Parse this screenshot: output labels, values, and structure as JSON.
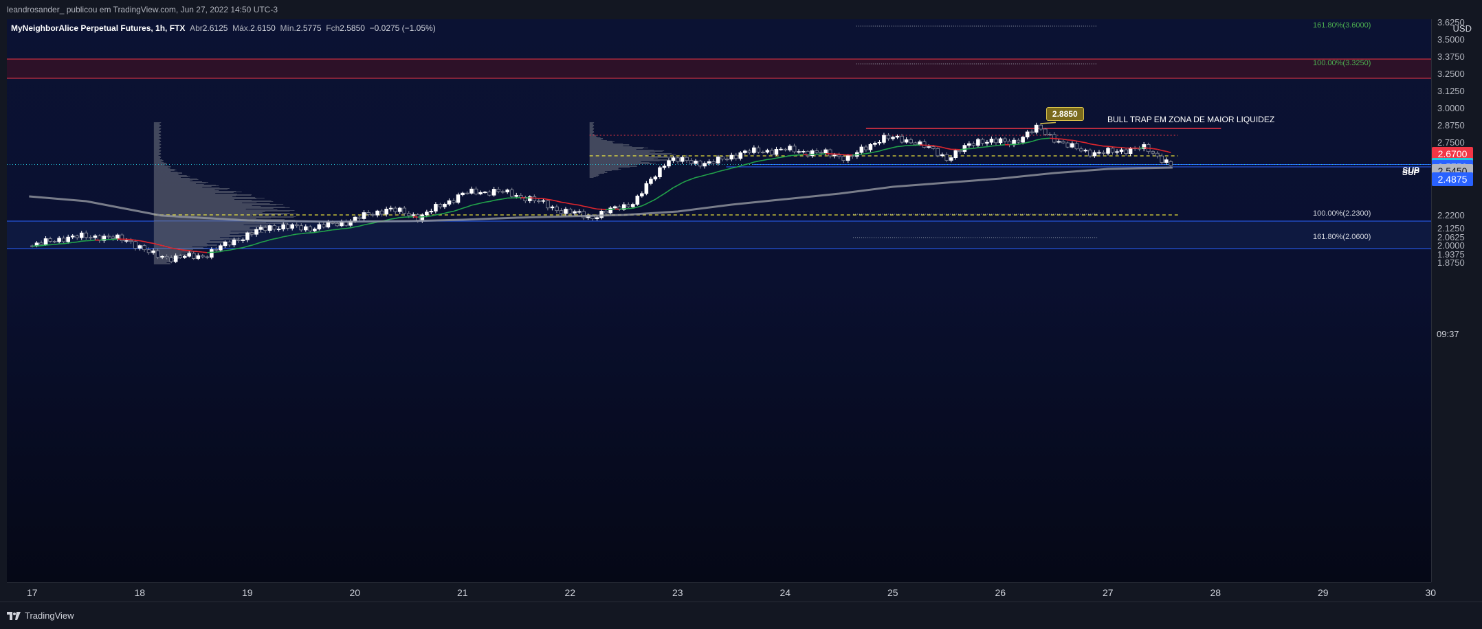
{
  "header": {
    "author_line": "leandrosander_ publicou em TradingView.com, Jun 27, 2022 14:50 UTC-3"
  },
  "legend": {
    "symbol": "MyNeighborAlice Perpetual Futures, 1h, FTX",
    "open_label": "Abr",
    "open": "2.6125",
    "high_label": "Máx.",
    "high": "2.6150",
    "low_label": "Mín.",
    "low": "2.5775",
    "close_label": "Fch",
    "close": "2.5850",
    "change": "−0.0275 (−1.05%)"
  },
  "yaxis": {
    "currency": "USD",
    "ticks": [
      "3.6250",
      "3.5000",
      "3.3750",
      "3.2500",
      "3.1250",
      "3.0000",
      "2.8750",
      "2.7500",
      "2.6250",
      "2.5850",
      "2.4875",
      "2.2200",
      "2.1250",
      "2.0625",
      "2.0000",
      "1.9375",
      "1.8750"
    ],
    "tick_values": [
      3.625,
      3.5,
      3.375,
      3.25,
      3.125,
      3.0,
      2.875,
      2.75,
      2.625,
      2.585,
      2.4875,
      2.22,
      2.125,
      2.0625,
      2.0,
      1.9375,
      1.875
    ],
    "price_tags": [
      {
        "label": "2.6700",
        "value": 2.67,
        "bg": "#f23645",
        "fg": "#ffffff"
      },
      {
        "label": "2.5925",
        "value": 2.5925,
        "bg": "#26c6da",
        "fg": "#0b1233"
      },
      {
        "label": "2.5750",
        "value": 2.575,
        "bg": "#2962ff",
        "fg": "#ffffff"
      },
      {
        "label": "2.5450",
        "value": 2.545,
        "bg": "#b2b5be",
        "fg": "#131722"
      },
      {
        "label": "2.4875",
        "value": 2.4875,
        "bg": "#2962ff",
        "fg": "#ffffff"
      }
    ],
    "countdown": "09:37"
  },
  "xaxis": {
    "labels": [
      "17",
      "18",
      "19",
      "20",
      "21",
      "22",
      "23",
      "24",
      "25",
      "26",
      "27",
      "28",
      "29",
      "30"
    ]
  },
  "annotations": {
    "fib_levels": [
      {
        "label": "161.80%(3.6000)",
        "value": 3.6,
        "color": "#4caf50"
      },
      {
        "label": "100.00%(3.3250)",
        "value": 3.325,
        "color": "#4caf50"
      },
      {
        "label": "100.00%(2.2300)",
        "value": 2.23,
        "color": "#d1d4dc"
      },
      {
        "label": "161.80%(2.0600)",
        "value": 2.06,
        "color": "#d1d4dc"
      }
    ],
    "high_callout": "2.8850",
    "bull_trap_text": "BULL TRAP EM ZONA DE MAIOR LIQUIDEZ",
    "sup_labels": [
      "SUP",
      "SUP"
    ],
    "sup_values": [
      2.5925,
      2.575
    ]
  },
  "footer": {
    "brand": "TradingView"
  },
  "colors": {
    "bull": "#ffffff",
    "bear": "#8a8e9b",
    "ema_up": "#22a34a",
    "ema_down": "#e0262d",
    "ma200": "#9598a1",
    "resistance_zone": "#f23645",
    "support_zone": "#2962ff",
    "poc_line": "#e8e03a"
  },
  "chart_data": {
    "type": "candlestick",
    "symbol": "MyNeighborAlice Perpetual Futures",
    "timeframe": "1h",
    "xlabel": "",
    "ylabel": "",
    "ylim": [
      1.85,
      3.65
    ],
    "x_day_labels": [
      "17",
      "18",
      "19",
      "20",
      "21",
      "22",
      "23",
      "24",
      "25",
      "26",
      "27",
      "28",
      "29",
      "30"
    ],
    "ohlc_last": {
      "open": 2.6125,
      "high": 2.615,
      "low": 2.5775,
      "close": 2.585
    },
    "support_levels": [
      2.5925,
      2.575
    ],
    "resistance_zone": [
      3.22,
      3.36
    ],
    "support_zone": [
      1.98,
      2.18
    ],
    "poc_levels": [
      2.225,
      2.655
    ],
    "key_high": 2.885,
    "fib_levels": [
      3.6,
      3.325,
      2.23,
      2.06
    ],
    "close_path": [
      {
        "day": 17.0,
        "price": 2.0
      },
      {
        "day": 17.3,
        "price": 2.06
      },
      {
        "day": 17.6,
        "price": 2.07
      },
      {
        "day": 17.9,
        "price": 2.04
      },
      {
        "day": 18.1,
        "price": 1.94
      },
      {
        "day": 18.3,
        "price": 1.91
      },
      {
        "day": 18.6,
        "price": 1.93
      },
      {
        "day": 18.85,
        "price": 2.03
      },
      {
        "day": 19.2,
        "price": 2.14
      },
      {
        "day": 19.6,
        "price": 2.13
      },
      {
        "day": 19.9,
        "price": 2.17
      },
      {
        "day": 20.3,
        "price": 2.27
      },
      {
        "day": 20.6,
        "price": 2.21
      },
      {
        "day": 21.0,
        "price": 2.38
      },
      {
        "day": 21.3,
        "price": 2.4
      },
      {
        "day": 21.6,
        "price": 2.35
      },
      {
        "day": 21.9,
        "price": 2.26
      },
      {
        "day": 22.2,
        "price": 2.21
      },
      {
        "day": 22.6,
        "price": 2.32
      },
      {
        "day": 22.9,
        "price": 2.63
      },
      {
        "day": 23.3,
        "price": 2.6
      },
      {
        "day": 23.6,
        "price": 2.68
      },
      {
        "day": 24.0,
        "price": 2.7
      },
      {
        "day": 24.4,
        "price": 2.67
      },
      {
        "day": 24.6,
        "price": 2.64
      },
      {
        "day": 24.9,
        "price": 2.79
      },
      {
        "day": 25.2,
        "price": 2.76
      },
      {
        "day": 25.5,
        "price": 2.64
      },
      {
        "day": 25.8,
        "price": 2.77
      },
      {
        "day": 26.1,
        "price": 2.75
      },
      {
        "day": 26.35,
        "price": 2.86
      },
      {
        "day": 26.6,
        "price": 2.73
      },
      {
        "day": 26.9,
        "price": 2.67
      },
      {
        "day": 27.15,
        "price": 2.7
      },
      {
        "day": 27.35,
        "price": 2.71
      },
      {
        "day": 27.6,
        "price": 2.585
      }
    ],
    "ma200_path": [
      {
        "day": 16.97,
        "price": 2.36
      },
      {
        "day": 17.5,
        "price": 2.325
      },
      {
        "day": 18.2,
        "price": 2.22
      },
      {
        "day": 19.0,
        "price": 2.185
      },
      {
        "day": 19.8,
        "price": 2.175
      },
      {
        "day": 20.5,
        "price": 2.18
      },
      {
        "day": 21.0,
        "price": 2.19
      },
      {
        "day": 21.5,
        "price": 2.205
      },
      {
        "day": 22.0,
        "price": 2.215
      },
      {
        "day": 22.5,
        "price": 2.225
      },
      {
        "day": 23.0,
        "price": 2.25
      },
      {
        "day": 23.5,
        "price": 2.3
      },
      {
        "day": 24.0,
        "price": 2.34
      },
      {
        "day": 24.5,
        "price": 2.38
      },
      {
        "day": 25.0,
        "price": 2.43
      },
      {
        "day": 25.5,
        "price": 2.46
      },
      {
        "day": 26.0,
        "price": 2.49
      },
      {
        "day": 26.5,
        "price": 2.53
      },
      {
        "day": 27.0,
        "price": 2.56
      },
      {
        "day": 27.6,
        "price": 2.57
      }
    ]
  }
}
